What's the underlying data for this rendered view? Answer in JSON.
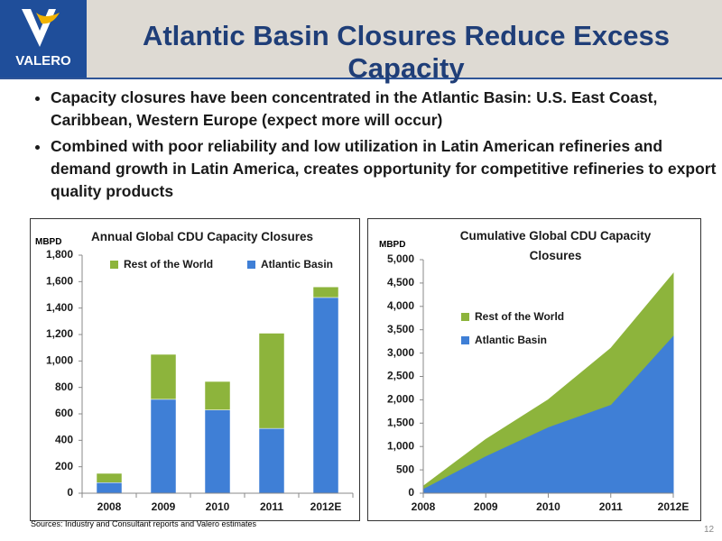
{
  "header": {
    "logo": "VALERO",
    "title": "Atlantic Basin Closures Reduce Excess Capacity"
  },
  "bullets": [
    "Capacity closures have been concentrated in the Atlantic Basin: U.S. East Coast, Caribbean, Western Europe (expect more will occur)",
    "Combined with poor reliability and low utilization in Latin American refineries and demand growth in Latin America, creates opportunity for competitive refineries to export quality products"
  ],
  "chart_data": [
    {
      "type": "bar",
      "stacked": true,
      "title": "Annual Global CDU Capacity Closures",
      "y_label": "MBPD",
      "categories": [
        "2008",
        "2009",
        "2010",
        "2011",
        "2012E"
      ],
      "series": [
        {
          "name": "Atlantic Basin",
          "color": "#3f7fd6",
          "values": [
            80,
            710,
            630,
            490,
            1480
          ]
        },
        {
          "name": "Rest of the World",
          "color": "#8db43c",
          "values": [
            70,
            340,
            215,
            720,
            80
          ]
        }
      ],
      "ylim": [
        0,
        1800
      ],
      "yticks": [
        0,
        200,
        400,
        600,
        800,
        {
          "value": 1000,
          "label": "1,000"
        },
        {
          "value": 1200,
          "label": "1,200"
        },
        {
          "value": 1400,
          "label": "1,400"
        },
        {
          "value": 1600,
          "label": "1,600"
        },
        {
          "value": 1800,
          "label": "1,800"
        }
      ]
    },
    {
      "type": "area",
      "stacked": true,
      "title": "Cumulative Global CDU Capacity Closures",
      "y_label": "MBPD",
      "categories": [
        "2008",
        "2009",
        "2010",
        "2011",
        "2012E"
      ],
      "series": [
        {
          "name": "Atlantic Basin",
          "color": "#3f7fd6",
          "values": [
            100,
            800,
            1420,
            1900,
            3380
          ]
        },
        {
          "name": "Rest of the World",
          "color": "#8db43c",
          "values": [
            50,
            350,
            580,
            1200,
            1320
          ]
        }
      ],
      "ylim": [
        0,
        5000
      ],
      "yticks": [
        0,
        500,
        {
          "value": 1000,
          "label": "1,000"
        },
        {
          "value": 1500,
          "label": "1,500"
        },
        {
          "value": 2000,
          "label": "2,000"
        },
        {
          "value": 2500,
          "label": "2,500"
        },
        {
          "value": 3000,
          "label": "3,000"
        },
        {
          "value": 3500,
          "label": "3,500"
        },
        {
          "value": 4000,
          "label": "4,000"
        },
        {
          "value": 4500,
          "label": "4,500"
        },
        {
          "value": 5000,
          "label": "5,000"
        }
      ]
    }
  ],
  "footer": {
    "source": "Sources: Industry and Consultant reports and Valero estimates",
    "page": "12"
  }
}
